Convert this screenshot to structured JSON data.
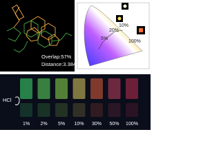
{
  "molecule_panel": {
    "overlap": "Overlap:57%",
    "distance": "Distance:3.384Å"
  },
  "cie_panel": {
    "point_labels": [
      "100%",
      "20%",
      "10%",
      "5%"
    ]
  },
  "vial_panel": {
    "reagent": "HCl",
    "concentrations": [
      "1%",
      "2%",
      "5%",
      "10%",
      "30%",
      "50%",
      "100%"
    ]
  }
}
